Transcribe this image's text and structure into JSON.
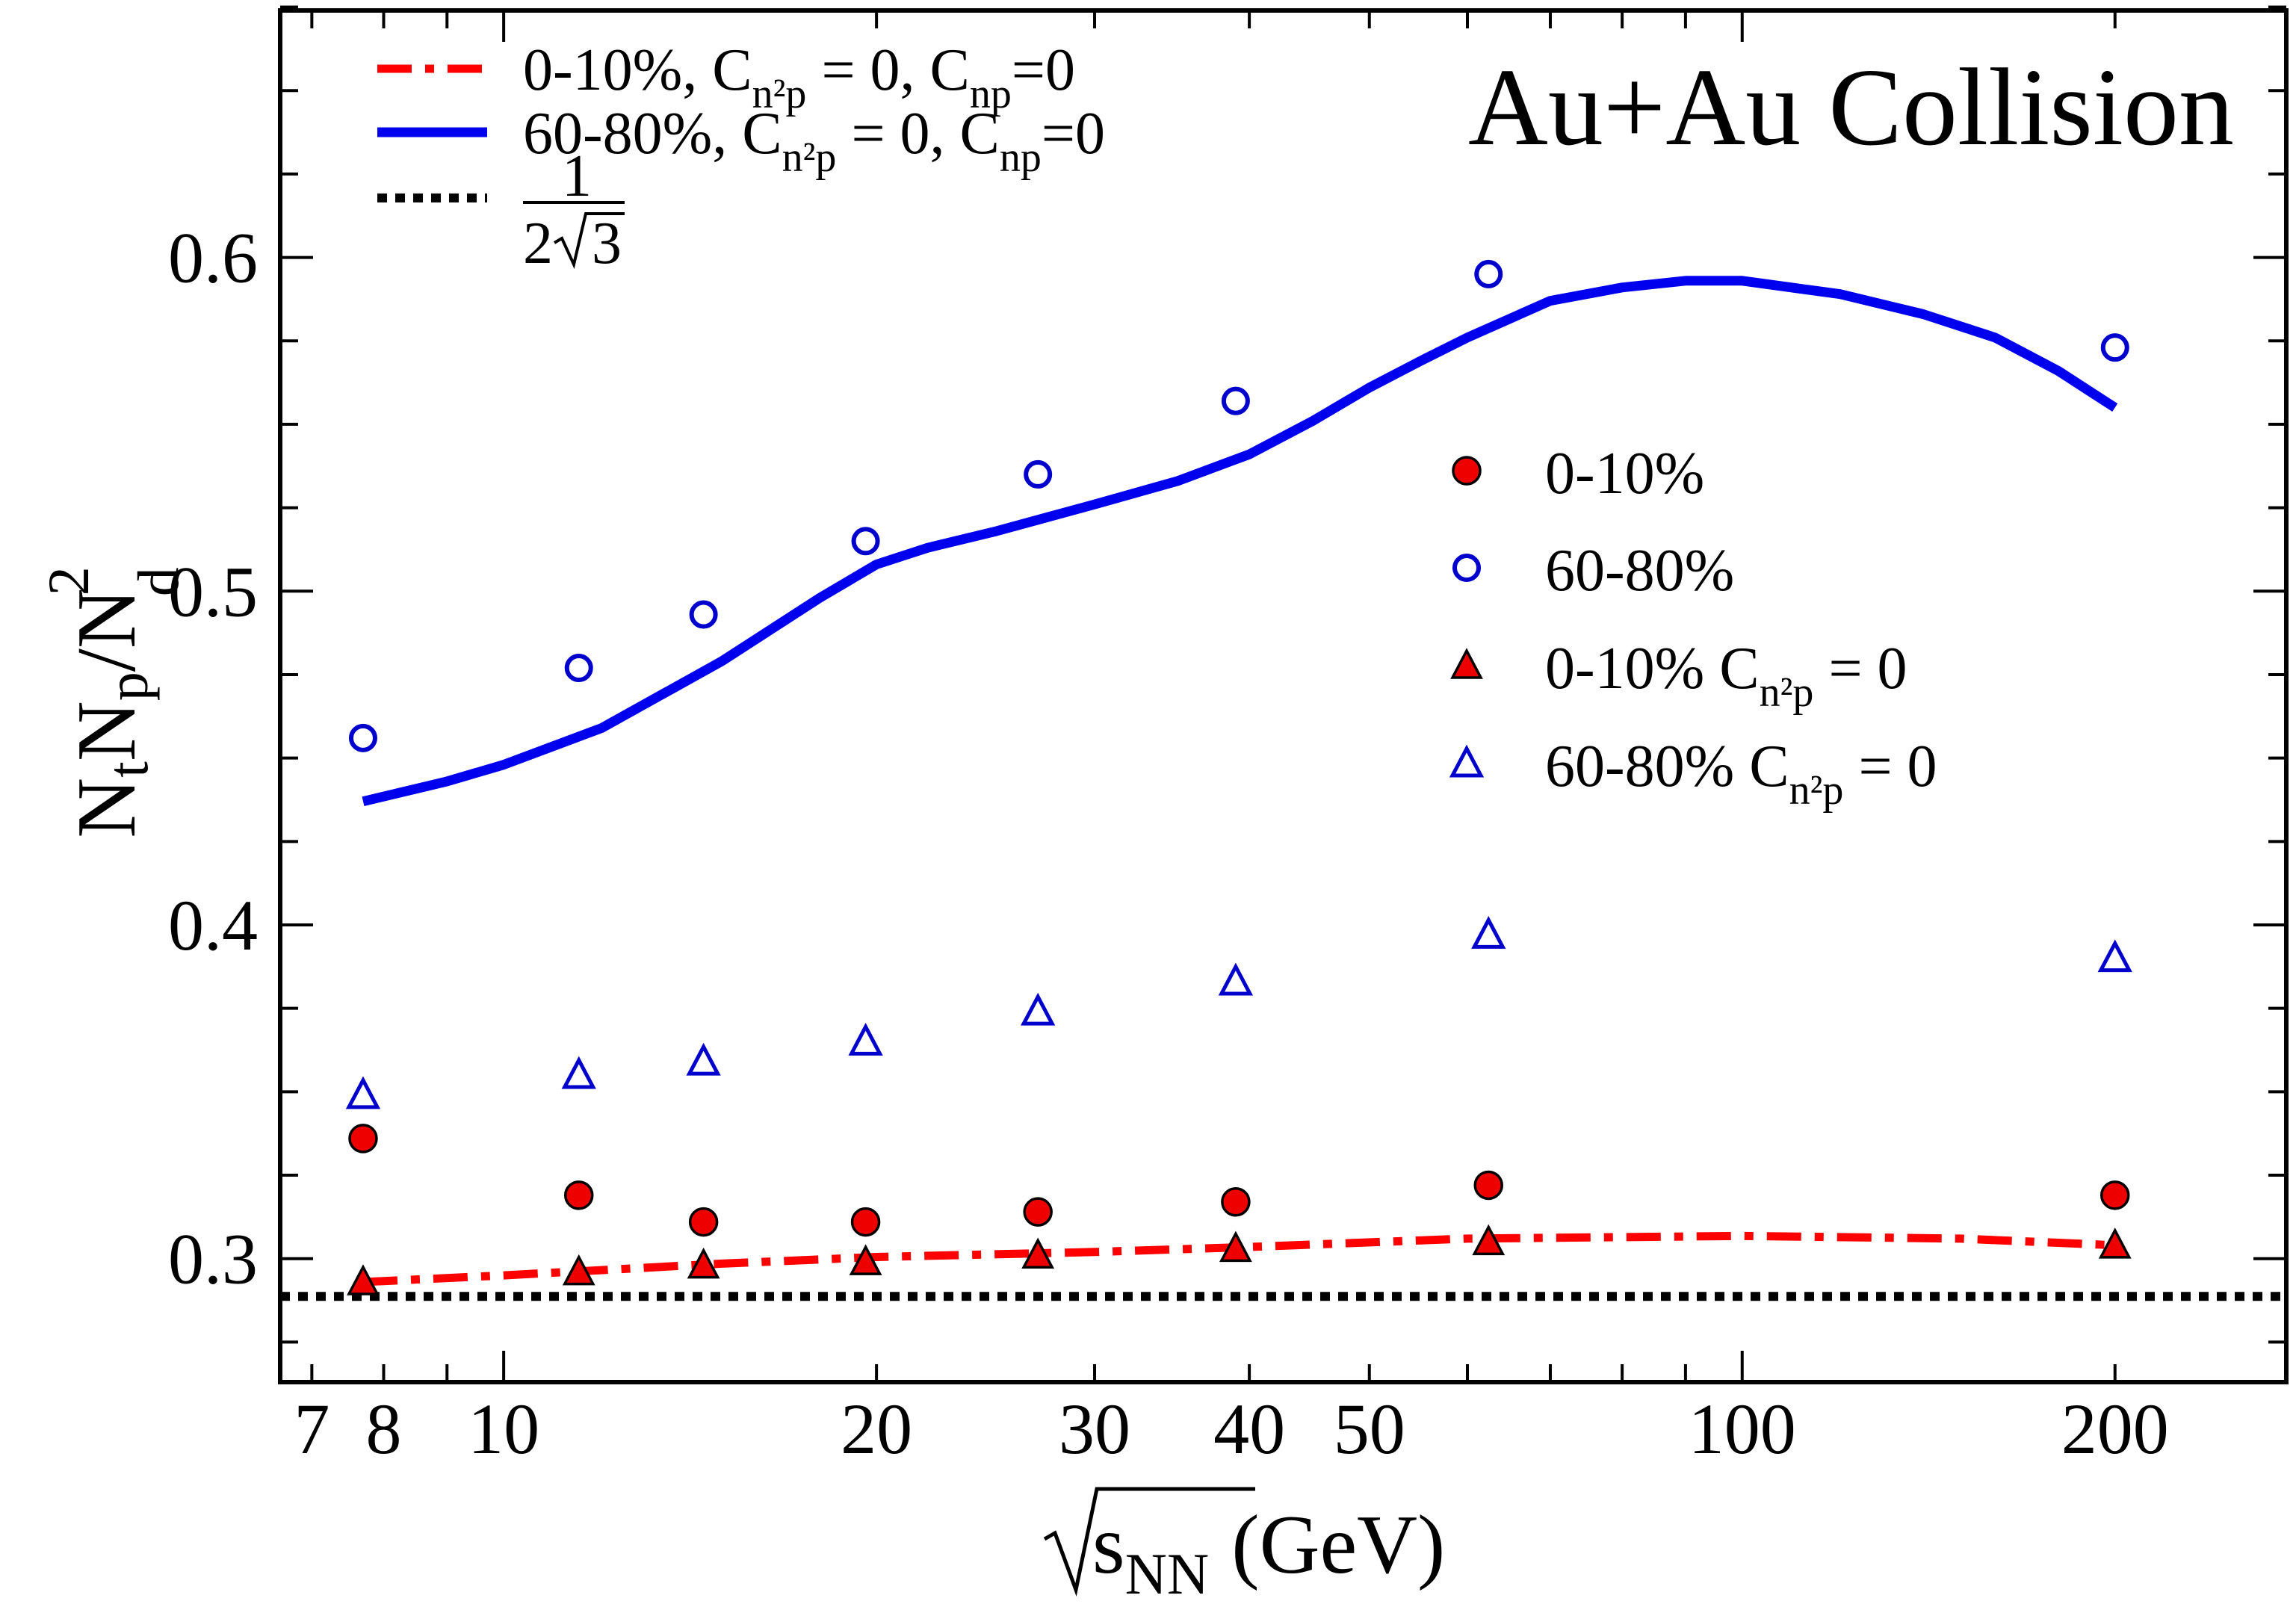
{
  "chart_data": {
    "type": "scatter",
    "title": "Au+Au Collision",
    "xlabel": "√sNN (GeV)",
    "xlabel_parts": {
      "var": "s",
      "sub": "NN",
      "unit": "(GeV)"
    },
    "ylabel": "NtNp/Nd²",
    "xscale": "log",
    "xlim": [
      6.6,
      275
    ],
    "ylim": [
      0.263,
      0.674
    ],
    "x_ticks": [
      7,
      8,
      10,
      20,
      30,
      40,
      50,
      100,
      200
    ],
    "x_tick_labels": [
      "7",
      "8",
      "10",
      "20",
      "30",
      "40",
      "50",
      "100",
      "200"
    ],
    "y_ticks": [
      0.3,
      0.4,
      0.5,
      0.6
    ],
    "y_tick_labels": [
      "0.3",
      "0.4",
      "0.5",
      "0.6"
    ],
    "legend_lines": [
      {
        "label": "0-10%, Cn²p = 0, Cnp=0",
        "parts": [
          "0-10%, C",
          "n²p",
          " = 0, C",
          "np",
          "=0"
        ],
        "color": "#ff0000",
        "style": "dash-dot"
      },
      {
        "label": "60-80%, Cn²p = 0, Cnp=0",
        "parts": [
          "60-80%, C",
          "n²p",
          " = 0, C",
          "np",
          "=0"
        ],
        "color": "#0000ee",
        "style": "solid"
      },
      {
        "label": "1/(2√3)",
        "numerator": "1",
        "denominator": "2",
        "radicand": "3",
        "color": "#000000",
        "style": "dotted"
      }
    ],
    "legend_markers": [
      {
        "label": "0-10%",
        "parts": [
          "0-10%"
        ],
        "marker": "circle-filled",
        "color": "#ee0000"
      },
      {
        "label": "60-80%",
        "parts": [
          "60-80%"
        ],
        "marker": "circle-open",
        "color": "#0000cc"
      },
      {
        "label": "0-10% Cn²p = 0",
        "parts": [
          "0-10% C",
          "n²p",
          " = 0"
        ],
        "marker": "triangle-filled",
        "color": "#ee0000"
      },
      {
        "label": "60-80% Cn²p = 0",
        "parts": [
          "60-80% C",
          "n²p",
          " = 0"
        ],
        "marker": "triangle-open",
        "color": "#0000cc"
      }
    ],
    "series": [
      {
        "name": "0-10%",
        "marker": "circle-filled",
        "color": "#ee0000",
        "x": [
          7.7,
          11.5,
          14.5,
          19.6,
          27,
          39,
          62.4,
          200
        ],
        "y": [
          0.336,
          0.319,
          0.311,
          0.311,
          0.314,
          0.317,
          0.322,
          0.319
        ]
      },
      {
        "name": "60-80%",
        "marker": "circle-open",
        "color": "#0000cc",
        "x": [
          7.7,
          11.5,
          14.5,
          19.6,
          27,
          39,
          62.4,
          200
        ],
        "y": [
          0.456,
          0.477,
          0.493,
          0.515,
          0.535,
          0.557,
          0.595,
          0.573
        ]
      },
      {
        "name": "0-10% Cn²p = 0",
        "marker": "triangle-filled",
        "color": "#ee0000",
        "x": [
          7.7,
          11.5,
          14.5,
          19.6,
          27,
          39,
          62.4,
          200
        ],
        "y": [
          0.293,
          0.296,
          0.298,
          0.299,
          0.301,
          0.303,
          0.305,
          0.304
        ]
      },
      {
        "name": "60-80% Cn²p = 0",
        "marker": "triangle-open",
        "color": "#0000cc",
        "x": [
          7.7,
          11.5,
          14.5,
          19.6,
          27,
          39,
          62.4,
          200
        ],
        "y": [
          0.349,
          0.355,
          0.359,
          0.365,
          0.374,
          0.383,
          0.397,
          0.39
        ]
      }
    ],
    "curves": [
      {
        "name": "0-10%, Cn²p = 0, Cnp=0",
        "color": "#ff0000",
        "style": "dash-dot",
        "x": [
          7.7,
          10,
          15,
          20,
          30,
          40,
          60,
          100,
          150,
          200
        ],
        "y": [
          0.293,
          0.295,
          0.2985,
          0.3005,
          0.302,
          0.3035,
          0.306,
          0.3068,
          0.306,
          0.304
        ]
      },
      {
        "name": "60-80%, Cn²p = 0, Cnp=0",
        "color": "#0000ee",
        "style": "solid",
        "x": [
          7.7,
          9,
          10,
          12,
          15,
          18,
          20,
          22,
          25,
          30,
          35,
          40,
          45,
          50,
          55,
          60,
          70,
          80,
          90,
          100,
          120,
          140,
          160,
          180,
          200
        ],
        "y": [
          0.437,
          0.443,
          0.448,
          0.459,
          0.479,
          0.498,
          0.508,
          0.513,
          0.518,
          0.526,
          0.533,
          0.541,
          0.551,
          0.561,
          0.569,
          0.576,
          0.587,
          0.591,
          0.593,
          0.593,
          0.589,
          0.583,
          0.576,
          0.566,
          0.555
        ]
      },
      {
        "name": "1/(2√3)",
        "color": "#000000",
        "style": "dotted",
        "x": [
          6.6,
          275
        ],
        "y": [
          0.2887,
          0.2887
        ]
      }
    ],
    "grid": false,
    "legend_placement": [
      "top-left",
      "center-right"
    ]
  }
}
